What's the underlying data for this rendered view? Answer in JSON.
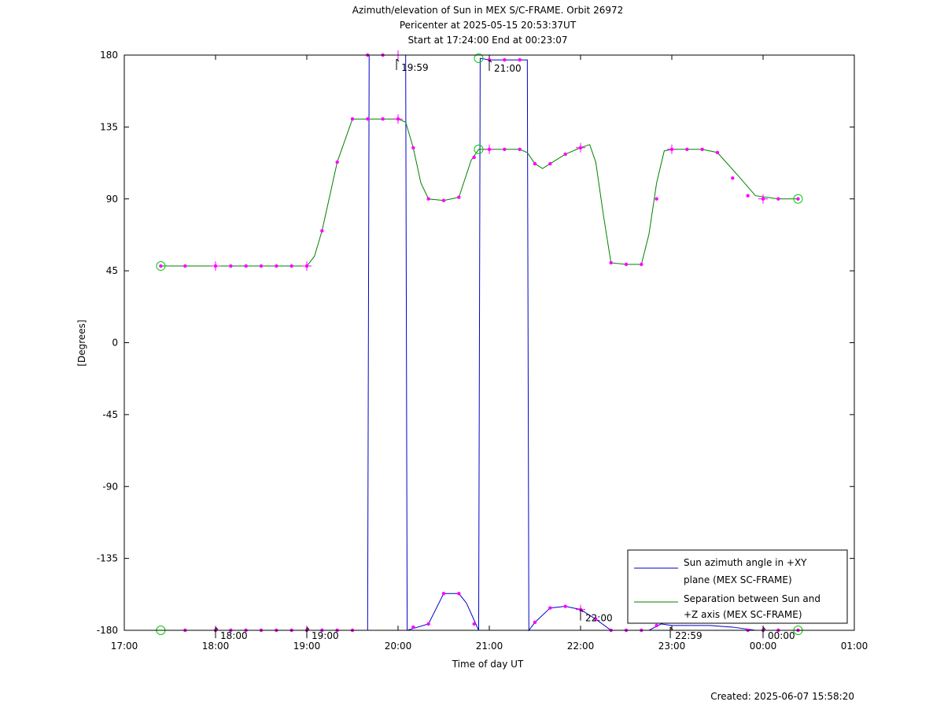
{
  "chart_data": {
    "type": "line",
    "title_lines": [
      "Azimuth/elevation of Sun in MEX S/C-FRAME.  Orbit 26972",
      "Pericenter at 2025-05-15 20:53:37UT",
      "Start at 17:24:00 End at 00:23:07"
    ],
    "xlabel": "Time of day UT",
    "ylabel": "[Degrees]",
    "xlim": [
      "17:00",
      "01:00"
    ],
    "ylim": [
      -180,
      180
    ],
    "x_ticks": [
      "17:00",
      "18:00",
      "19:00",
      "20:00",
      "21:00",
      "22:00",
      "23:00",
      "00:00",
      "01:00"
    ],
    "y_ticks": [
      "180",
      "135",
      "90",
      "45",
      "0",
      "-45",
      "-90",
      "-135",
      "-180"
    ],
    "legend_position": "bottom-right",
    "series": [
      {
        "name": "Sun azimuth angle in +XY plane (MEX SC-FRAME)",
        "legend_lines": [
          "Sun azimuth angle in +XY",
          "plane (MEX SC-FRAME)"
        ],
        "color": "#0000cc",
        "points": [
          [
            "17:24",
            -180
          ],
          [
            "18:00",
            -180
          ],
          [
            "19:00",
            -180
          ],
          [
            "19:40",
            -180
          ],
          [
            "19:41",
            180
          ],
          [
            "19:59",
            180
          ],
          [
            "20:05",
            180
          ],
          [
            "20:06",
            -180
          ],
          [
            "20:20",
            -176
          ],
          [
            "20:30",
            -157
          ],
          [
            "20:40",
            -157
          ],
          [
            "20:45",
            -163
          ],
          [
            "20:53",
            -180
          ],
          [
            "20:54",
            178
          ],
          [
            "21:00",
            177
          ],
          [
            "21:25",
            177
          ],
          [
            "21:26",
            -180
          ],
          [
            "21:30",
            -175
          ],
          [
            "21:40",
            -166
          ],
          [
            "21:50",
            -165
          ],
          [
            "22:00",
            -167
          ],
          [
            "22:10",
            -173
          ],
          [
            "22:20",
            -180
          ],
          [
            "22:45",
            -180
          ],
          [
            "22:53",
            -176
          ],
          [
            "23:00",
            -177
          ],
          [
            "23:25",
            -177
          ],
          [
            "23:40",
            -178
          ],
          [
            "23:55",
            -180
          ],
          [
            "00:23",
            -180
          ]
        ]
      },
      {
        "name": "Separation between Sun and +Z axis (MEX SC-FRAME)",
        "legend_lines": [
          "Separation between Sun and",
          "+Z axis (MEX SC-FRAME)"
        ],
        "color": "#008000",
        "points": [
          [
            "17:24",
            48
          ],
          [
            "17:40",
            48
          ],
          [
            "18:00",
            48
          ],
          [
            "18:30",
            48
          ],
          [
            "19:00",
            48
          ],
          [
            "19:05",
            54
          ],
          [
            "19:10",
            70
          ],
          [
            "19:20",
            113
          ],
          [
            "19:30",
            140
          ],
          [
            "19:50",
            140
          ],
          [
            "20:00",
            140
          ],
          [
            "20:05",
            138
          ],
          [
            "20:10",
            122
          ],
          [
            "20:15",
            100
          ],
          [
            "20:20",
            90
          ],
          [
            "20:30",
            89
          ],
          [
            "20:40",
            91
          ],
          [
            "20:48",
            114
          ],
          [
            "20:53",
            121
          ],
          [
            "21:00",
            121
          ],
          [
            "21:20",
            121
          ],
          [
            "21:25",
            119
          ],
          [
            "21:30",
            112
          ],
          [
            "21:35",
            109
          ],
          [
            "21:40",
            112
          ],
          [
            "21:50",
            118
          ],
          [
            "22:00",
            122
          ],
          [
            "22:06",
            124
          ],
          [
            "22:10",
            113
          ],
          [
            "22:15",
            80
          ],
          [
            "22:20",
            50
          ],
          [
            "22:30",
            49
          ],
          [
            "22:40",
            49
          ],
          [
            "22:45",
            68
          ],
          [
            "22:50",
            100
          ],
          [
            "22:55",
            120
          ],
          [
            "23:00",
            121
          ],
          [
            "23:20",
            121
          ],
          [
            "23:30",
            119
          ],
          [
            "23:45",
            103
          ],
          [
            "23:55",
            92
          ],
          [
            "00:10",
            90
          ],
          [
            "00:23",
            90
          ]
        ]
      }
    ],
    "markers": {
      "color": "#ff00ff",
      "dots": [
        [
          "17:24",
          48
        ],
        [
          "17:40",
          48
        ],
        [
          "18:00",
          48
        ],
        [
          "18:10",
          48
        ],
        [
          "18:20",
          48
        ],
        [
          "18:30",
          48
        ],
        [
          "18:40",
          48
        ],
        [
          "18:50",
          48
        ],
        [
          "19:00",
          48
        ],
        [
          "19:10",
          70
        ],
        [
          "19:20",
          113
        ],
        [
          "19:30",
          140
        ],
        [
          "19:40",
          140
        ],
        [
          "19:50",
          140
        ],
        [
          "20:00",
          140
        ],
        [
          "20:10",
          122
        ],
        [
          "20:20",
          90
        ],
        [
          "20:30",
          89
        ],
        [
          "20:40",
          91
        ],
        [
          "20:50",
          116
        ],
        [
          "21:00",
          121
        ],
        [
          "21:10",
          121
        ],
        [
          "21:20",
          121
        ],
        [
          "21:30",
          112
        ],
        [
          "21:40",
          112
        ],
        [
          "21:50",
          118
        ],
        [
          "22:00",
          122
        ],
        [
          "22:20",
          50
        ],
        [
          "22:30",
          49
        ],
        [
          "22:40",
          49
        ],
        [
          "22:50",
          90
        ],
        [
          "23:00",
          121
        ],
        [
          "23:10",
          121
        ],
        [
          "23:20",
          121
        ],
        [
          "23:30",
          119
        ],
        [
          "23:40",
          103
        ],
        [
          "23:50",
          92
        ],
        [
          "00:00",
          90
        ],
        [
          "00:10",
          90
        ],
        [
          "00:23",
          90
        ],
        [
          "17:40",
          -180
        ],
        [
          "18:00",
          -180
        ],
        [
          "18:10",
          -180
        ],
        [
          "18:20",
          -180
        ],
        [
          "18:30",
          -180
        ],
        [
          "18:40",
          -180
        ],
        [
          "18:50",
          -180
        ],
        [
          "19:00",
          -180
        ],
        [
          "19:10",
          -180
        ],
        [
          "19:20",
          -180
        ],
        [
          "19:30",
          -180
        ],
        [
          "19:40",
          180
        ],
        [
          "19:50",
          180
        ],
        [
          "20:10",
          -178
        ],
        [
          "20:20",
          -176
        ],
        [
          "20:30",
          -157
        ],
        [
          "20:40",
          -157
        ],
        [
          "20:50",
          -176
        ],
        [
          "21:00",
          177
        ],
        [
          "21:10",
          177
        ],
        [
          "21:20",
          177
        ],
        [
          "21:30",
          -175
        ],
        [
          "21:40",
          -166
        ],
        [
          "21:50",
          -165
        ],
        [
          "22:00",
          -167
        ],
        [
          "22:10",
          -173
        ],
        [
          "22:20",
          -180
        ],
        [
          "22:30",
          -180
        ],
        [
          "22:40",
          -180
        ],
        [
          "22:50",
          -177
        ],
        [
          "23:50",
          -180
        ],
        [
          "00:00",
          -180
        ],
        [
          "00:10",
          -180
        ],
        [
          "00:23",
          -180
        ]
      ],
      "crosses": [
        [
          "18:00",
          48
        ],
        [
          "19:00",
          48
        ],
        [
          "20:00",
          140
        ],
        [
          "21:00",
          121
        ],
        [
          "22:00",
          122
        ],
        [
          "23:00",
          121
        ],
        [
          "00:00",
          90
        ],
        [
          "18:00",
          -180
        ],
        [
          "19:00",
          -180
        ],
        [
          "20:00",
          180
        ],
        [
          "22:00",
          -167
        ]
      ]
    },
    "endpoint_circles": {
      "color": "#00cc00",
      "points": [
        [
          "17:24",
          48
        ],
        [
          "17:24",
          -180
        ],
        [
          "00:23",
          90
        ],
        [
          "00:23",
          -180
        ],
        [
          "20:53",
          121
        ],
        [
          "20:53",
          178
        ]
      ]
    },
    "annotations": [
      {
        "x": "18:00",
        "y": -180,
        "label": "18:00"
      },
      {
        "x": "19:00",
        "y": -180,
        "label": "19:00"
      },
      {
        "x": "19:59",
        "y": 180,
        "label": "19:59"
      },
      {
        "x": "21:00",
        "y": 177,
        "label": "21:00"
      },
      {
        "x": "22:00",
        "y": -167,
        "label": "22:00"
      },
      {
        "x": "22:59",
        "y": -180,
        "label": "22:59"
      },
      {
        "x": "00:00",
        "y": -180,
        "label": "00:00"
      }
    ],
    "footer": "Created: 2025-06-07 15:58:20"
  }
}
